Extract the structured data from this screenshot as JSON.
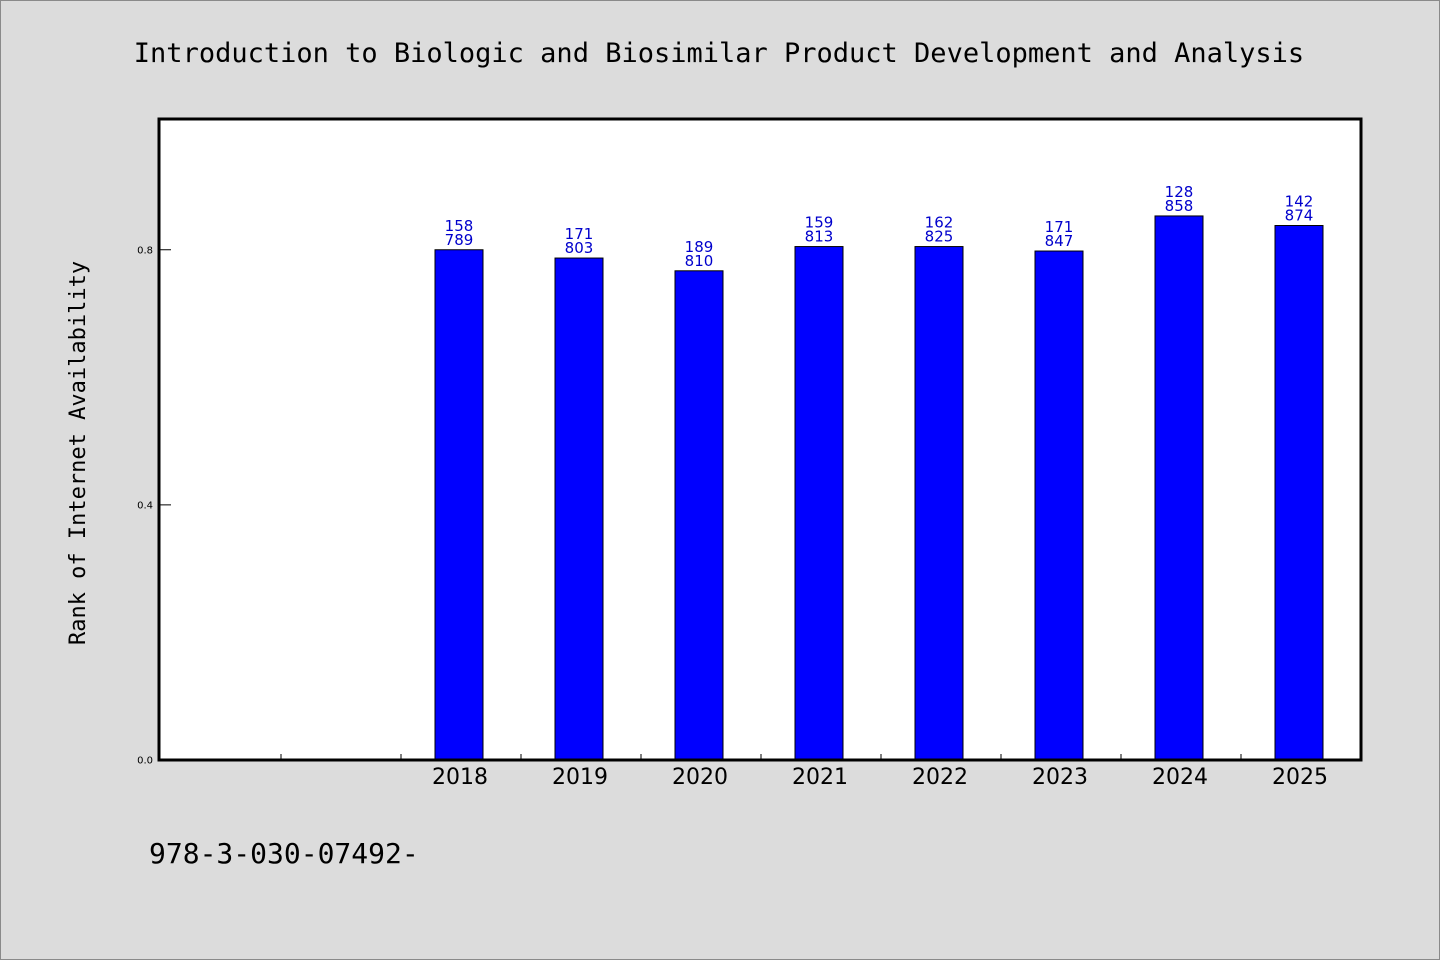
{
  "chart_data": {
    "type": "bar",
    "title": "Introduction to Biologic and Biosimilar Product Development and Analysis",
    "xlabel": "",
    "ylabel": "Rank of Internet Availability",
    "categories": [
      "2018",
      "2019",
      "2020",
      "2021",
      "2022",
      "2023",
      "2024",
      "2025"
    ],
    "values": [
      0.8,
      0.787,
      0.767,
      0.805,
      0.805,
      0.798,
      0.853,
      0.838
    ],
    "data_labels": [
      [
        "158",
        "789"
      ],
      [
        "171",
        "803"
      ],
      [
        "189",
        "810"
      ],
      [
        "159",
        "813"
      ],
      [
        "162",
        "825"
      ],
      [
        "171",
        "847"
      ],
      [
        "128",
        "858"
      ],
      [
        "142",
        "874"
      ]
    ],
    "ylim": [
      0,
      1.005
    ],
    "yticks": [
      0.0,
      0.4,
      0.8
    ],
    "ytick_labels": [
      "0.0",
      "0.4",
      "0.8"
    ],
    "grid": false,
    "legend": "none"
  },
  "footer": {
    "text": "978-3-030-07492-"
  },
  "colors": {
    "background": "#dcdcdc",
    "plot_background": "#ffffff",
    "bar": "#0000ff",
    "data_label": "#0000cc"
  }
}
